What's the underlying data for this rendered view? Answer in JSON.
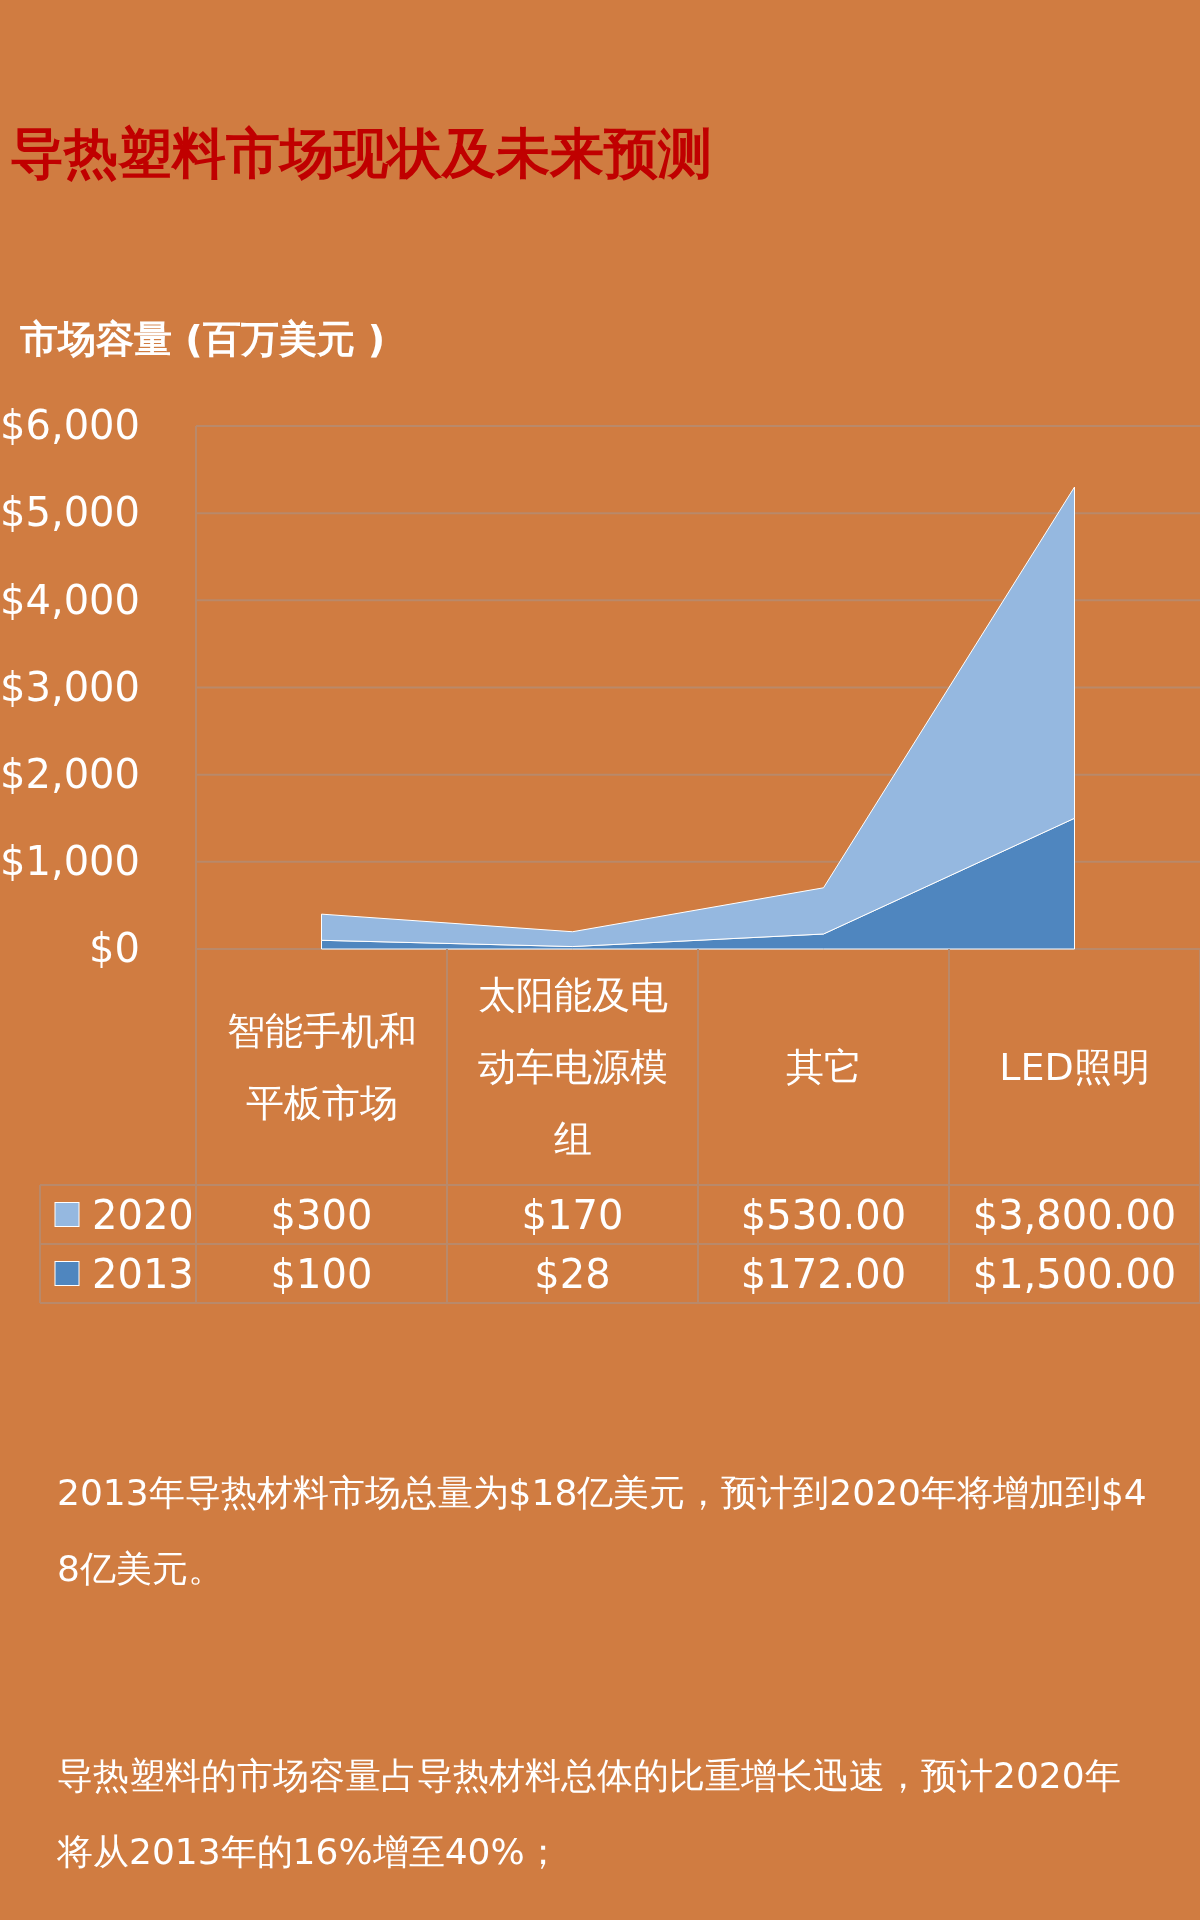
{
  "chart_data": {
    "type": "area",
    "stacked": true,
    "title": "导热塑料市场现状及未来预测",
    "ylabel": "市场容量 (百万美元 )",
    "categories": [
      "智能手机和平板市场",
      "太阳能及电动车电源模组",
      "其它",
      "LED照明"
    ],
    "series": [
      {
        "name": "2013",
        "color": "#4f86bf",
        "values": [
          100,
          28,
          172,
          1500
        ],
        "value_labels": [
          "$100",
          "$28",
          "$172.00",
          "$1,500.00"
        ]
      },
      {
        "name": "2020",
        "color": "#95b8e0",
        "values": [
          300,
          170,
          530,
          3800
        ],
        "value_labels": [
          "$300",
          "$170",
          "$530.00",
          "$3,800.00"
        ]
      }
    ],
    "ylim": [
      0,
      6000
    ],
    "yticks": [
      {
        "value": 0,
        "label": "$0"
      },
      {
        "value": 1000,
        "label": "$1,000"
      },
      {
        "value": 2000,
        "label": "$2,000"
      },
      {
        "value": 3000,
        "label": "$3,000"
      },
      {
        "value": 4000,
        "label": "$4,000"
      },
      {
        "value": 5000,
        "label": "$5,000"
      },
      {
        "value": 6000,
        "label": "$6,000"
      }
    ],
    "grid": "y",
    "legend": "bottom",
    "annotations": [
      "2013年导热材料市场总量为$18亿美元，预计到2020年将增加到$48亿美元。",
      "导热塑料的市场容量占导热材料总体的比重增长迅速，预计2020年将从2013年的16%增至40%；"
    ]
  }
}
